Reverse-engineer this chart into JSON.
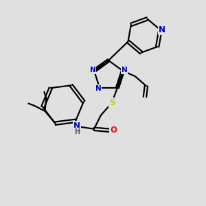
{
  "background_color": "#e0e0e0",
  "bond_color": "#000000",
  "atom_colors": {
    "N": "#0000cc",
    "O": "#ff0000",
    "S": "#cccc00",
    "H": "#555555"
  },
  "lw": 1.6,
  "fs": 8.5,
  "figsize": [
    3.0,
    3.0
  ],
  "dpi": 100
}
